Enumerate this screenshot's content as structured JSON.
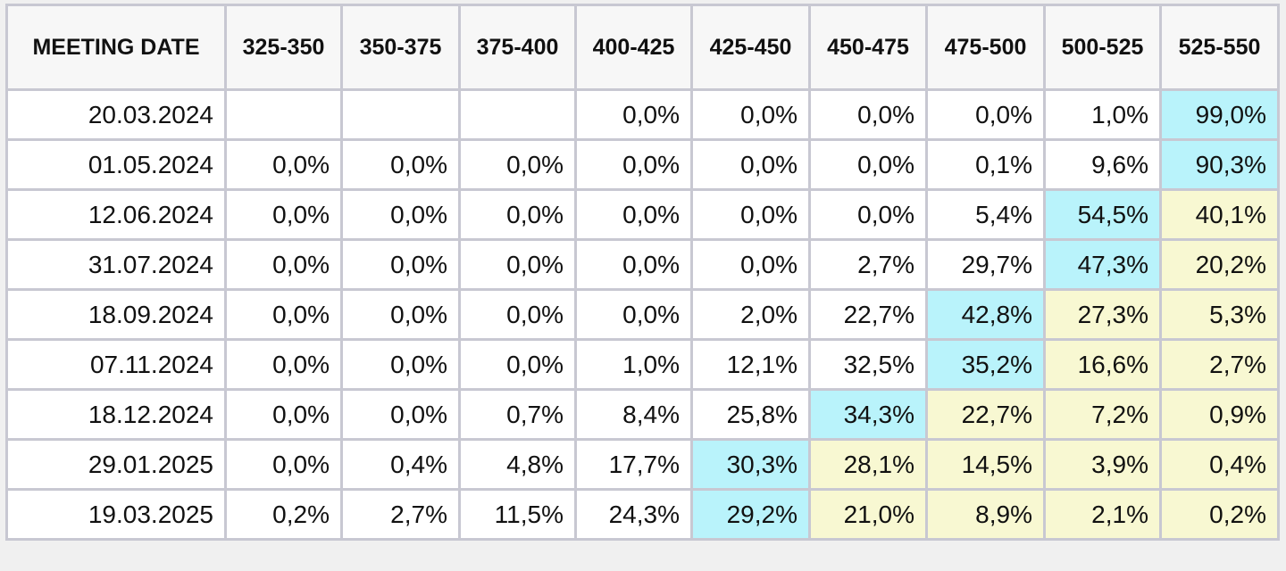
{
  "table": {
    "headers": [
      "MEETING DATE",
      "325-350",
      "350-375",
      "375-400",
      "400-425",
      "425-450",
      "450-475",
      "475-500",
      "500-525",
      "525-550"
    ],
    "rows": [
      {
        "date": "20.03.2024",
        "values": [
          "",
          "",
          "",
          "0,0%",
          "0,0%",
          "0,0%",
          "0,0%",
          "1,0%",
          "99,0%"
        ],
        "max_index": 8
      },
      {
        "date": "01.05.2024",
        "values": [
          "0,0%",
          "0,0%",
          "0,0%",
          "0,0%",
          "0,0%",
          "0,0%",
          "0,1%",
          "9,6%",
          "90,3%"
        ],
        "max_index": 8
      },
      {
        "date": "12.06.2024",
        "values": [
          "0,0%",
          "0,0%",
          "0,0%",
          "0,0%",
          "0,0%",
          "0,0%",
          "5,4%",
          "54,5%",
          "40,1%"
        ],
        "max_index": 7
      },
      {
        "date": "31.07.2024",
        "values": [
          "0,0%",
          "0,0%",
          "0,0%",
          "0,0%",
          "0,0%",
          "2,7%",
          "29,7%",
          "47,3%",
          "20,2%"
        ],
        "max_index": 7
      },
      {
        "date": "18.09.2024",
        "values": [
          "0,0%",
          "0,0%",
          "0,0%",
          "0,0%",
          "2,0%",
          "22,7%",
          "42,8%",
          "27,3%",
          "5,3%"
        ],
        "max_index": 6
      },
      {
        "date": "07.11.2024",
        "values": [
          "0,0%",
          "0,0%",
          "0,0%",
          "1,0%",
          "12,1%",
          "32,5%",
          "35,2%",
          "16,6%",
          "2,7%"
        ],
        "max_index": 6
      },
      {
        "date": "18.12.2024",
        "values": [
          "0,0%",
          "0,0%",
          "0,7%",
          "8,4%",
          "25,8%",
          "34,3%",
          "22,7%",
          "7,2%",
          "0,9%"
        ],
        "max_index": 5
      },
      {
        "date": "29.01.2025",
        "values": [
          "0,0%",
          "0,4%",
          "4,8%",
          "17,7%",
          "30,3%",
          "28,1%",
          "14,5%",
          "3,9%",
          "0,4%"
        ],
        "max_index": 4
      },
      {
        "date": "19.03.2025",
        "values": [
          "0,2%",
          "2,7%",
          "11,5%",
          "24,3%",
          "29,2%",
          "21,0%",
          "8,9%",
          "2,1%",
          "0,2%"
        ],
        "max_index": 4
      }
    ]
  },
  "colors": {
    "max_cell": "#b9f3fb",
    "after_max_cell": "#f8f8d2",
    "header_bg": "#f7f7f7",
    "border": "#c8c8d2"
  }
}
